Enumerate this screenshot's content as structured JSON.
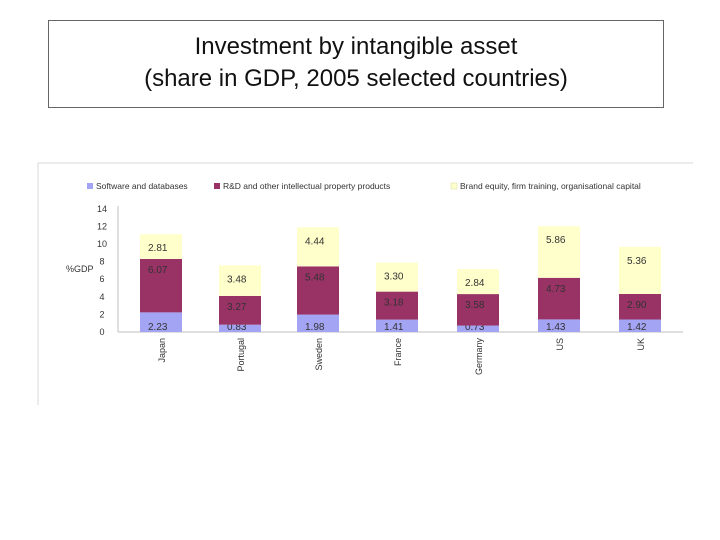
{
  "slide": {
    "title_line1": "Investment by intangible asset",
    "title_line2": "(share in GDP, 2005 selected countries)"
  },
  "chart_data": {
    "type": "bar",
    "stacked": true,
    "ylabel": "%GDP",
    "ylim": [
      0,
      14
    ],
    "yticks": [
      0,
      2,
      4,
      6,
      8,
      10,
      12,
      14
    ],
    "grid": false,
    "legend_position": "top",
    "categories": [
      "Japan",
      "Portugal",
      "Sweden",
      "France",
      "Germany",
      "US",
      "UK"
    ],
    "series": [
      {
        "name": "Software and databases",
        "color": "#a4a4f4",
        "values": [
          2.23,
          0.83,
          1.98,
          1.41,
          0.73,
          1.43,
          1.42
        ]
      },
      {
        "name": "R&D and other intellectual property products",
        "color": "#993366",
        "values": [
          6.07,
          3.27,
          5.48,
          3.18,
          3.58,
          4.73,
          2.9
        ]
      },
      {
        "name": "Brand equity, firm training, organisational capital",
        "color": "#ffffcc",
        "values": [
          2.81,
          3.48,
          4.44,
          3.3,
          2.84,
          5.86,
          5.36
        ]
      }
    ],
    "labels": [
      [
        "2.23",
        "0.83",
        "1.98",
        "1.41",
        "0.73",
        "1.43",
        "1.42"
      ],
      [
        "6.07",
        "3.27",
        "5.48",
        "3.18",
        "3.58",
        "4.73",
        "2.90"
      ],
      [
        "2.81",
        "3.48",
        "4.44",
        "3.30",
        "2.84",
        "5.86",
        "5.36"
      ]
    ]
  }
}
